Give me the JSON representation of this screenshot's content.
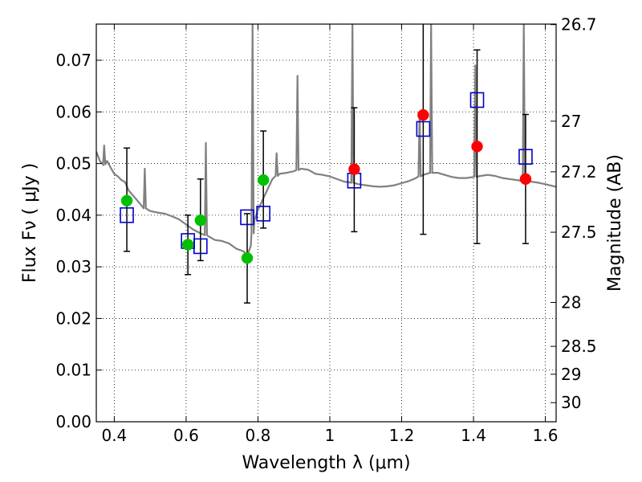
{
  "chart_data": {
    "type": "scatter",
    "title": "",
    "xlabel": "Wavelength  λ (μm)",
    "ylabel": "Flux  Fν  ( μJy )",
    "y2label": "Magnitude (AB)",
    "xlim": [
      0.35,
      1.63
    ],
    "ylim": [
      0.0,
      0.077
    ],
    "grid": true,
    "colors": {
      "spectrum": "#808080",
      "model": "#0000cc",
      "green": "#00c000",
      "red": "#ff0000",
      "errorbar": "#000000"
    },
    "xticks": [
      {
        "value": 0.4,
        "label": "0.4"
      },
      {
        "value": 0.6,
        "label": "0.6"
      },
      {
        "value": 0.8,
        "label": "0.8"
      },
      {
        "value": 1.0,
        "label": "1"
      },
      {
        "value": 1.2,
        "label": "1.2"
      },
      {
        "value": 1.4,
        "label": "1.4"
      },
      {
        "value": 1.6,
        "label": "1.6"
      }
    ],
    "yticks": [
      {
        "value": 0.0,
        "label": "0.00"
      },
      {
        "value": 0.01,
        "label": "0.01"
      },
      {
        "value": 0.02,
        "label": "0.02"
      },
      {
        "value": 0.03,
        "label": "0.03"
      },
      {
        "value": 0.04,
        "label": "0.04"
      },
      {
        "value": 0.05,
        "label": "0.05"
      },
      {
        "value": 0.06,
        "label": "0.06"
      },
      {
        "value": 0.07,
        "label": "0.07"
      }
    ],
    "y2ticks": [
      {
        "flux": 0.0769,
        "label": "26.7"
      },
      {
        "flux": 0.0582,
        "label": "27"
      },
      {
        "flux": 0.0484,
        "label": "27.2"
      },
      {
        "flux": 0.0367,
        "label": "27.5"
      },
      {
        "flux": 0.0231,
        "label": "28"
      },
      {
        "flux": 0.0146,
        "label": "28.5"
      },
      {
        "flux": 0.0092,
        "label": "29"
      },
      {
        "flux": 0.0037,
        "label": "30"
      }
    ],
    "spectrum": [
      [
        0.35,
        0.0523
      ],
      [
        0.36,
        0.0505
      ],
      [
        0.37,
        0.0497
      ],
      [
        0.38,
        0.0505
      ],
      [
        0.39,
        0.0492
      ],
      [
        0.4,
        0.048
      ],
      [
        0.41,
        0.0475
      ],
      [
        0.42,
        0.0468
      ],
      [
        0.43,
        0.0464
      ],
      [
        0.44,
        0.0448
      ],
      [
        0.46,
        0.0432
      ],
      [
        0.48,
        0.0415
      ],
      [
        0.5,
        0.0408
      ],
      [
        0.52,
        0.0405
      ],
      [
        0.54,
        0.0403
      ],
      [
        0.56,
        0.0398
      ],
      [
        0.58,
        0.0392
      ],
      [
        0.6,
        0.0382
      ],
      [
        0.62,
        0.0372
      ],
      [
        0.64,
        0.0365
      ],
      [
        0.66,
        0.036
      ],
      [
        0.68,
        0.0352
      ],
      [
        0.7,
        0.035
      ],
      [
        0.72,
        0.0345
      ],
      [
        0.74,
        0.0335
      ],
      [
        0.76,
        0.033
      ],
      [
        0.77,
        0.0322
      ],
      [
        0.78,
        0.034
      ],
      [
        0.79,
        0.039
      ],
      [
        0.8,
        0.041
      ],
      [
        0.82,
        0.044
      ],
      [
        0.84,
        0.047
      ],
      [
        0.86,
        0.048
      ],
      [
        0.88,
        0.0482
      ],
      [
        0.9,
        0.0485
      ],
      [
        0.92,
        0.049
      ],
      [
        0.94,
        0.0488
      ],
      [
        0.96,
        0.048
      ],
      [
        0.98,
        0.0478
      ],
      [
        1.0,
        0.0475
      ],
      [
        1.02,
        0.047
      ],
      [
        1.04,
        0.0465
      ],
      [
        1.06,
        0.0463
      ],
      [
        1.08,
        0.046
      ],
      [
        1.1,
        0.0458
      ],
      [
        1.12,
        0.0456
      ],
      [
        1.14,
        0.0455
      ],
      [
        1.16,
        0.0456
      ],
      [
        1.18,
        0.0458
      ],
      [
        1.2,
        0.0462
      ],
      [
        1.22,
        0.0466
      ],
      [
        1.24,
        0.0472
      ],
      [
        1.26,
        0.0478
      ],
      [
        1.28,
        0.0482
      ],
      [
        1.3,
        0.0482
      ],
      [
        1.32,
        0.0478
      ],
      [
        1.34,
        0.0474
      ],
      [
        1.36,
        0.0472
      ],
      [
        1.38,
        0.0472
      ],
      [
        1.4,
        0.0474
      ],
      [
        1.42,
        0.0476
      ],
      [
        1.44,
        0.0478
      ],
      [
        1.46,
        0.0476
      ],
      [
        1.48,
        0.0472
      ],
      [
        1.5,
        0.047
      ],
      [
        1.52,
        0.0468
      ],
      [
        1.54,
        0.0466
      ],
      [
        1.56,
        0.0465
      ],
      [
        1.58,
        0.0463
      ],
      [
        1.6,
        0.046
      ],
      [
        1.63,
        0.0455
      ]
    ],
    "spectrum_lines": [
      {
        "x": 0.372,
        "peak": 0.0535
      },
      {
        "x": 0.485,
        "peak": 0.049
      },
      {
        "x": 0.655,
        "peak": 0.054
      },
      {
        "x": 0.785,
        "peak": 0.077
      },
      {
        "x": 0.852,
        "peak": 0.052
      },
      {
        "x": 0.91,
        "peak": 0.067
      },
      {
        "x": 1.063,
        "peak": 0.077
      },
      {
        "x": 1.25,
        "peak": 0.06
      },
      {
        "x": 1.282,
        "peak": 0.077
      },
      {
        "x": 1.405,
        "peak": 0.069
      },
      {
        "x": 1.54,
        "peak": 0.077
      }
    ],
    "series": [
      {
        "marker": "square",
        "points": [
          [
            0.435,
            0.04
          ],
          [
            0.605,
            0.035
          ],
          [
            0.64,
            0.034
          ],
          [
            0.77,
            0.0396
          ],
          [
            0.815,
            0.0403
          ],
          [
            1.068,
            0.0467
          ],
          [
            1.26,
            0.0567
          ],
          [
            1.41,
            0.0623
          ],
          [
            1.545,
            0.0513
          ]
        ]
      },
      {
        "marker": "circle-green",
        "points": [
          [
            0.435,
            0.0428,
            0.033,
            0.053
          ],
          [
            0.605,
            0.0343,
            0.0285,
            0.04
          ],
          [
            0.64,
            0.039,
            0.0312,
            0.047
          ],
          [
            0.77,
            0.0317,
            0.023,
            0.0403
          ],
          [
            0.815,
            0.0468,
            0.0375,
            0.0563
          ]
        ]
      },
      {
        "marker": "circle-red",
        "points": [
          [
            1.068,
            0.0489,
            0.0368,
            0.0608
          ],
          [
            1.26,
            0.0594,
            0.0363,
            0.077
          ],
          [
            1.41,
            0.0533,
            0.0345,
            0.072
          ],
          [
            1.545,
            0.047,
            0.0345,
            0.0595
          ]
        ]
      }
    ]
  }
}
